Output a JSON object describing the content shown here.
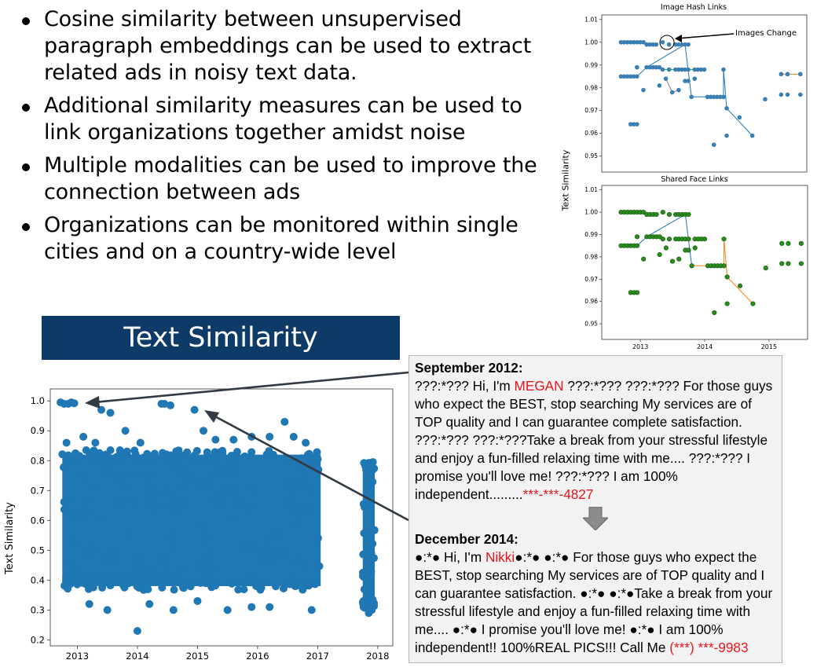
{
  "bullets": [
    "Cosine similarity between unsupervised paragraph embeddings can be used to extract related ads in noisy text data.",
    "Additional similarity measures can be used to link organizations together amidst noise",
    "Multiple modalities can be used to improve the connection between ads",
    "Organizations can be monitored within single cities and on a country-wide level"
  ],
  "banner_title": "Text Similarity",
  "ads": {
    "sep": {
      "heading": "September 2012:",
      "pre": "???:*??? Hi, I'm ",
      "name": "MEGAN",
      "body": " ???:*???  ???:*??? For those guys who expect the BEST, stop searching My services are of TOP quality and I can guarantee complete satisfaction. ???:*???  ???:*???Take a break from your stressful lifestyle and enjoy a fun-filled relaxing time with me.... ???:*??? I promise you'll love me! ???:*??? I am 100% independent.........",
      "phone": "***-***-4827"
    },
    "dec": {
      "heading": "December 2014:",
      "pre": "●:*● Hi, I'm ",
      "name": "Nikki",
      "body": "●:*●   ●:*● For those guys who expect the BEST, stop searching  My services are of TOP quality and I can guarantee satisfaction. ●:*●   ●:*●Take a break from your stressful lifestyle and enjoy a fun-filled  relaxing time with me.... ●:*●  I promise you'll love me! ●:*●  I am 100% independent!! 100%REAL PICS!!!  Call Me  ",
      "phone": "(***) ***-9983"
    }
  },
  "chart_data": [
    {
      "type": "scatter",
      "title": "",
      "xlabel": "",
      "ylabel": "Text Similarity",
      "xlim": [
        2012.55,
        2018.25
      ],
      "ylim": [
        0.18,
        1.04
      ],
      "xticks": [
        "2013",
        "2014",
        "2015",
        "2016",
        "2017",
        "2018"
      ],
      "yticks": [
        "0.2",
        "0.3",
        "0.4",
        "0.5",
        "0.6",
        "0.7",
        "0.8",
        "0.9",
        "1.0"
      ],
      "color": "#1f77b4",
      "dense_regions": [
        {
          "x": [
            2012.75,
            2017.05
          ],
          "y": [
            0.38,
            0.82
          ]
        },
        {
          "x": [
            2017.75,
            2017.95
          ],
          "y": [
            0.32,
            0.78
          ]
        }
      ],
      "points": [
        [
          2012.72,
          0.995
        ],
        [
          2012.78,
          0.99
        ],
        [
          2012.85,
          0.99
        ],
        [
          2012.9,
          0.995
        ],
        [
          2012.95,
          0.992
        ],
        [
          2013.4,
          0.97
        ],
        [
          2012.82,
          0.86
        ],
        [
          2013.1,
          0.88
        ],
        [
          2013.3,
          0.86
        ],
        [
          2013.55,
          0.96
        ],
        [
          2013.8,
          0.9
        ],
        [
          2014.05,
          0.86
        ],
        [
          2014.4,
          0.99
        ],
        [
          2014.45,
          0.99
        ],
        [
          2014.55,
          0.985
        ],
        [
          2014.95,
          0.97
        ],
        [
          2015.1,
          0.9
        ],
        [
          2015.3,
          0.87
        ],
        [
          2015.6,
          0.87
        ],
        [
          2015.9,
          0.88
        ],
        [
          2016.2,
          0.88
        ],
        [
          2016.6,
          0.88
        ],
        [
          2016.8,
          0.86
        ],
        [
          2016.45,
          0.93
        ],
        [
          2013.5,
          0.3
        ],
        [
          2014.6,
          0.3
        ],
        [
          2015.5,
          0.3
        ],
        [
          2016.2,
          0.31
        ],
        [
          2016.9,
          0.3
        ],
        [
          2013.2,
          0.32
        ],
        [
          2014.0,
          0.23
        ],
        [
          2014.2,
          0.32
        ],
        [
          2015.0,
          0.33
        ],
        [
          2015.9,
          0.31
        ],
        [
          2017.85,
          0.29
        ],
        [
          2017.9,
          0.3
        ]
      ],
      "band": {
        "x": [
          2012.75,
          2014.7
        ],
        "y": 0.4
      },
      "annotations": [
        {
          "label": "September 2012 ad",
          "x": 2012.95,
          "y": 0.99
        },
        {
          "label": "December 2014 ad",
          "x": 2015.05,
          "y": 0.97
        }
      ]
    },
    {
      "type": "scatter",
      "title": "Image Hash Links",
      "ylabel": "Text Similarity",
      "xlim": [
        2012.4,
        2015.6
      ],
      "ylim": [
        0.943,
        1.012
      ],
      "yticks": [
        "0.95",
        "0.96",
        "0.97",
        "0.98",
        "0.99",
        "1.00",
        "1.01"
      ],
      "annotation": "Images Change",
      "annotation_point": [
        2013.65,
        1.0
      ],
      "colors": {
        "points": "#3a7fb3",
        "link_a": "#1f77b4",
        "link_b": "#ff7f0e",
        "link_c": "#2ca02c",
        "link_d": "#9467bd"
      },
      "points": [
        [
          2012.7,
          1.0
        ],
        [
          2012.75,
          1.0
        ],
        [
          2012.8,
          1.0
        ],
        [
          2012.85,
          1.0
        ],
        [
          2012.9,
          1.0
        ],
        [
          2012.95,
          1.0
        ],
        [
          2013.0,
          1.0
        ],
        [
          2013.05,
          1.0
        ],
        [
          2013.1,
          0.999
        ],
        [
          2013.15,
          0.999
        ],
        [
          2013.2,
          0.999
        ],
        [
          2013.25,
          0.999
        ],
        [
          2013.35,
          1.0
        ],
        [
          2013.45,
          0.999
        ],
        [
          2013.55,
          0.999
        ],
        [
          2013.6,
          0.999
        ],
        [
          2013.65,
          0.999
        ],
        [
          2013.7,
          0.999
        ],
        [
          2013.75,
          0.999
        ],
        [
          2012.7,
          0.985
        ],
        [
          2012.75,
          0.985
        ],
        [
          2012.8,
          0.985
        ],
        [
          2012.85,
          0.985
        ],
        [
          2012.9,
          0.985
        ],
        [
          2012.95,
          0.985
        ],
        [
          2012.95,
          0.989
        ],
        [
          2013.1,
          0.989
        ],
        [
          2013.15,
          0.989
        ],
        [
          2013.2,
          0.989
        ],
        [
          2013.25,
          0.989
        ],
        [
          2013.3,
          0.989
        ],
        [
          2013.35,
          0.988
        ],
        [
          2013.45,
          0.988
        ],
        [
          2013.55,
          0.988
        ],
        [
          2013.6,
          0.988
        ],
        [
          2013.65,
          0.988
        ],
        [
          2013.7,
          0.988
        ],
        [
          2013.75,
          0.988
        ],
        [
          2013.85,
          0.988
        ],
        [
          2013.9,
          0.988
        ],
        [
          2013.95,
          0.988
        ],
        [
          2014.0,
          0.988
        ],
        [
          2013.05,
          0.979
        ],
        [
          2013.3,
          0.981
        ],
        [
          2013.4,
          0.984
        ],
        [
          2013.5,
          0.978
        ],
        [
          2013.6,
          0.979
        ],
        [
          2013.7,
          0.983
        ],
        [
          2013.75,
          0.983
        ],
        [
          2013.8,
          0.976
        ],
        [
          2013.85,
          0.984
        ],
        [
          2014.05,
          0.976
        ],
        [
          2014.1,
          0.976
        ],
        [
          2014.15,
          0.976
        ],
        [
          2014.2,
          0.976
        ],
        [
          2014.25,
          0.976
        ],
        [
          2014.3,
          0.988
        ],
        [
          2014.3,
          0.976
        ],
        [
          2014.35,
          0.971
        ],
        [
          2014.15,
          0.955
        ],
        [
          2014.35,
          0.959
        ],
        [
          2014.55,
          0.967
        ],
        [
          2014.75,
          0.959
        ],
        [
          2012.85,
          0.964
        ],
        [
          2012.9,
          0.964
        ],
        [
          2012.95,
          0.964
        ],
        [
          2014.95,
          0.975
        ],
        [
          2015.2,
          0.977
        ],
        [
          2015.3,
          0.977
        ],
        [
          2015.5,
          0.977
        ],
        [
          2015.2,
          0.986
        ],
        [
          2015.3,
          0.986
        ],
        [
          2015.5,
          0.986
        ]
      ],
      "link_a": [
        [
          2012.95,
          0.985
        ],
        [
          2013.1,
          0.989
        ],
        [
          2013.7,
          0.999
        ],
        [
          2013.8,
          0.976
        ],
        [
          2014.3,
          0.976
        ],
        [
          2014.3,
          0.988
        ],
        [
          2014.35,
          0.971
        ],
        [
          2014.75,
          0.959
        ]
      ],
      "link_b": [
        [
          2015.2,
          0.986
        ],
        [
          2015.5,
          0.986
        ]
      ],
      "link_c": [
        [
          2013.35,
          0.988
        ],
        [
          2014.0,
          0.988
        ]
      ],
      "link_d": [
        [
          2013.4,
          0.984
        ],
        [
          2013.5,
          0.978
        ],
        [
          2013.6,
          0.979
        ]
      ]
    },
    {
      "type": "scatter",
      "title": "Shared Face Links",
      "ylim": [
        0.943,
        1.012
      ],
      "xlim": [
        2012.4,
        2015.6
      ],
      "xticks": [
        "2013",
        "2014",
        "2015"
      ],
      "yticks": [
        "0.95",
        "0.96",
        "0.97",
        "0.98",
        "0.99",
        "1.00",
        "1.01"
      ],
      "colors": {
        "points": "#2a8a1e",
        "edge": "#0f5c0a",
        "link_a": "#1f77b4",
        "link_b": "#ff7f0e"
      },
      "points": [
        [
          2012.7,
          1.0
        ],
        [
          2012.75,
          1.0
        ],
        [
          2012.8,
          1.0
        ],
        [
          2012.85,
          1.0
        ],
        [
          2012.9,
          1.0
        ],
        [
          2012.95,
          1.0
        ],
        [
          2013.0,
          1.0
        ],
        [
          2013.05,
          1.0
        ],
        [
          2013.1,
          0.999
        ],
        [
          2013.15,
          0.999
        ],
        [
          2013.2,
          0.999
        ],
        [
          2013.25,
          0.999
        ],
        [
          2013.35,
          1.0
        ],
        [
          2013.45,
          0.999
        ],
        [
          2013.55,
          0.999
        ],
        [
          2013.6,
          0.999
        ],
        [
          2013.65,
          0.999
        ],
        [
          2013.7,
          0.999
        ],
        [
          2013.75,
          0.999
        ],
        [
          2012.7,
          0.985
        ],
        [
          2012.75,
          0.985
        ],
        [
          2012.8,
          0.985
        ],
        [
          2012.85,
          0.985
        ],
        [
          2012.9,
          0.985
        ],
        [
          2012.95,
          0.985
        ],
        [
          2012.95,
          0.989
        ],
        [
          2013.1,
          0.989
        ],
        [
          2013.15,
          0.989
        ],
        [
          2013.2,
          0.989
        ],
        [
          2013.25,
          0.989
        ],
        [
          2013.3,
          0.989
        ],
        [
          2013.35,
          0.988
        ],
        [
          2013.45,
          0.988
        ],
        [
          2013.55,
          0.988
        ],
        [
          2013.6,
          0.988
        ],
        [
          2013.65,
          0.988
        ],
        [
          2013.7,
          0.988
        ],
        [
          2013.75,
          0.988
        ],
        [
          2013.85,
          0.988
        ],
        [
          2013.9,
          0.988
        ],
        [
          2013.95,
          0.988
        ],
        [
          2014.0,
          0.988
        ],
        [
          2013.05,
          0.979
        ],
        [
          2013.3,
          0.981
        ],
        [
          2013.4,
          0.984
        ],
        [
          2013.5,
          0.978
        ],
        [
          2013.6,
          0.979
        ],
        [
          2013.7,
          0.983
        ],
        [
          2013.75,
          0.983
        ],
        [
          2013.8,
          0.976
        ],
        [
          2013.85,
          0.984
        ],
        [
          2014.05,
          0.976
        ],
        [
          2014.1,
          0.976
        ],
        [
          2014.15,
          0.976
        ],
        [
          2014.2,
          0.976
        ],
        [
          2014.25,
          0.976
        ],
        [
          2014.3,
          0.988
        ],
        [
          2014.3,
          0.976
        ],
        [
          2014.35,
          0.971
        ],
        [
          2014.15,
          0.955
        ],
        [
          2014.35,
          0.959
        ],
        [
          2014.55,
          0.967
        ],
        [
          2014.75,
          0.959
        ],
        [
          2012.85,
          0.964
        ],
        [
          2012.9,
          0.964
        ],
        [
          2012.95,
          0.964
        ],
        [
          2014.95,
          0.975
        ],
        [
          2015.2,
          0.977
        ],
        [
          2015.3,
          0.977
        ],
        [
          2015.5,
          0.977
        ],
        [
          2015.2,
          0.986
        ],
        [
          2015.3,
          0.986
        ],
        [
          2015.5,
          0.986
        ]
      ],
      "link_a": [
        [
          2012.95,
          0.985
        ],
        [
          2013.1,
          0.989
        ],
        [
          2013.7,
          0.999
        ],
        [
          2013.8,
          0.976
        ]
      ],
      "link_b": [
        [
          2013.8,
          0.976
        ],
        [
          2014.3,
          0.976
        ],
        [
          2014.3,
          0.988
        ],
        [
          2014.35,
          0.971
        ],
        [
          2014.75,
          0.959
        ]
      ]
    }
  ]
}
